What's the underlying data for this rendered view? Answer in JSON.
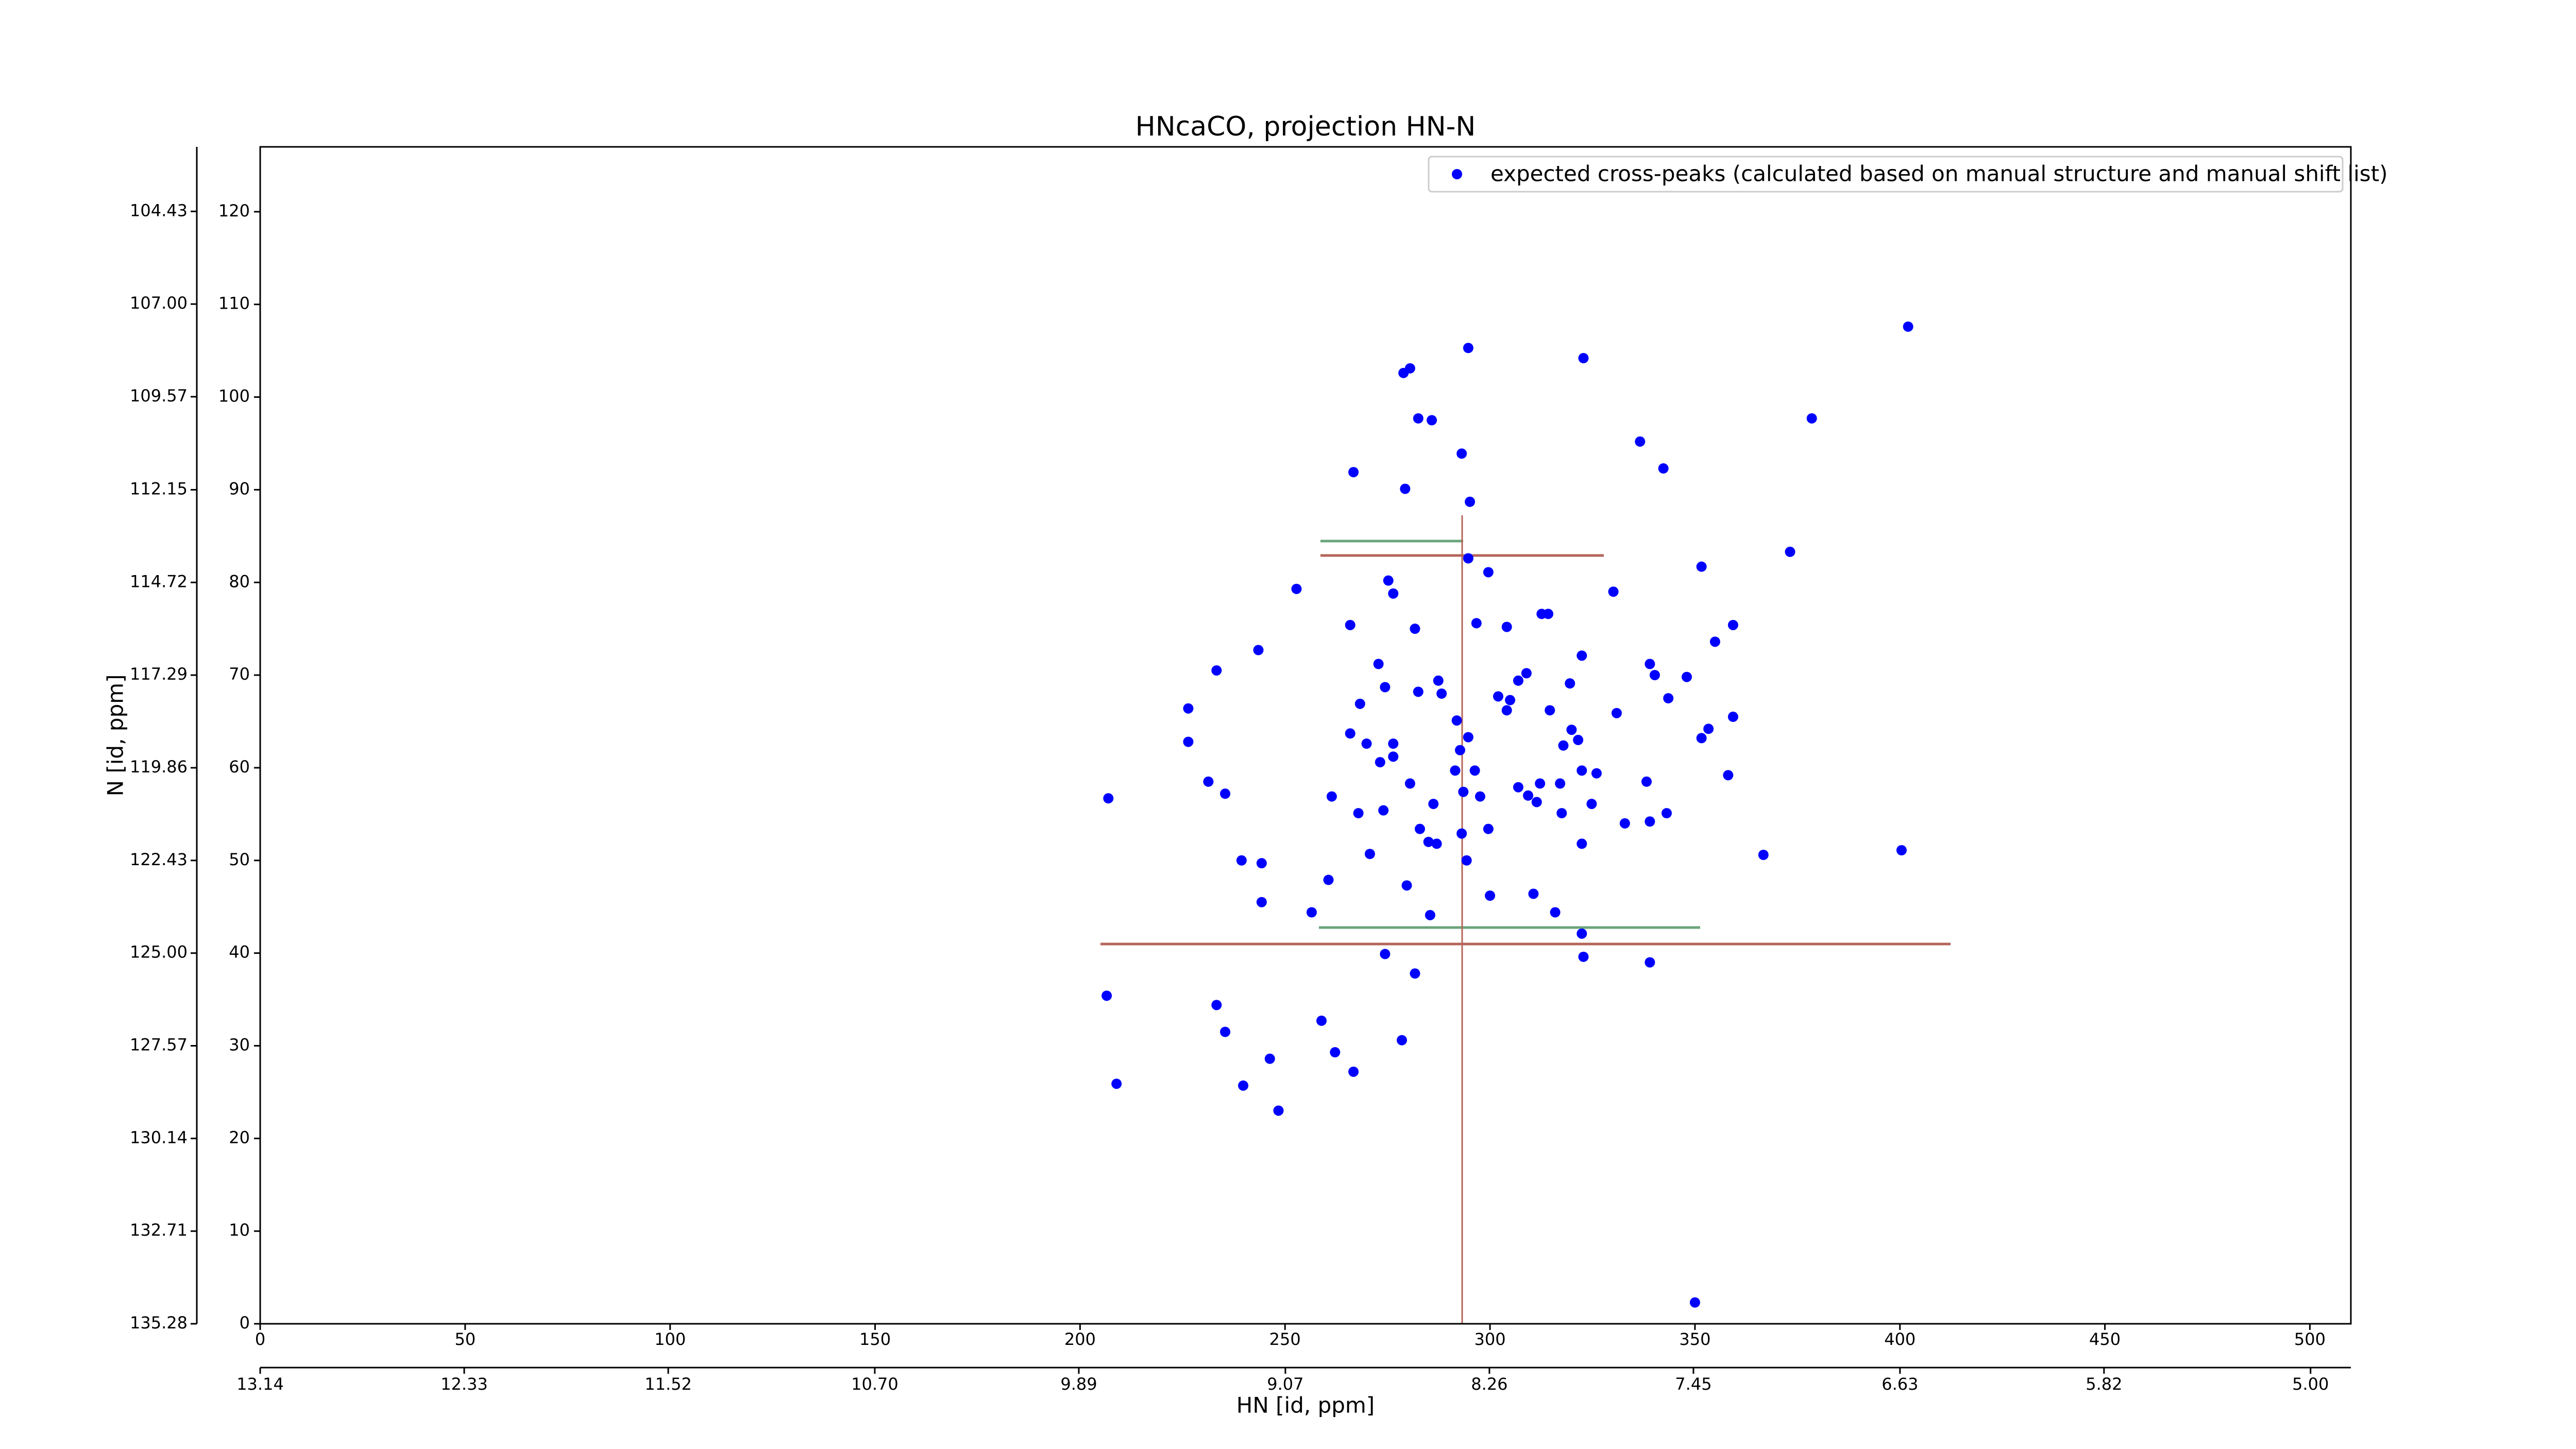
{
  "chart_data": {
    "type": "scatter",
    "title": "HNcaCO, projection HN-N",
    "xlabel": "HN [id, ppm]",
    "ylabel": "N [id, ppm]",
    "xlim": [
      0,
      510
    ],
    "xticks": [
      0,
      50,
      100,
      150,
      200,
      250,
      300,
      350,
      400,
      450,
      500
    ],
    "x2lim": [
      13.14,
      4.84
    ],
    "x2ticks": [
      13.14,
      12.33,
      11.52,
      {
        "value": 10.7,
        "label": "10.70"
      },
      9.89,
      9.07,
      8.26,
      7.45,
      6.63,
      5.82,
      {
        "value": 5,
        "label": "5.00"
      }
    ],
    "ylim": [
      0,
      127
    ],
    "yticks": [
      0,
      10,
      20,
      30,
      40,
      50,
      60,
      70,
      80,
      90,
      100,
      110,
      120
    ],
    "y2lim": [
      135.28,
      102.64
    ],
    "y2ticks": [
      135.28,
      132.71,
      130.14,
      127.57,
      {
        "value": 125,
        "label": "125.00"
      },
      122.43,
      119.86,
      117.29,
      114.72,
      112.15,
      109.57,
      {
        "value": 107,
        "label": "107.00"
      },
      104.43
    ],
    "legend": "upper right",
    "series": [
      {
        "name": "expected cross-peaks (calculated based on manual structure and manual shift list)",
        "color": "#0000ff",
        "x": [
          402.0,
          378.5,
          294.7,
          322.8,
          280.5,
          278.9,
          282.5,
          285.8,
          293.1,
          266.7,
          279.3,
          342.3,
          336.6,
          295.1,
          294.7,
          299.6,
          373.2,
          351.6,
          252.8,
          275.2,
          276.4,
          330.1,
          243.5,
          265.9,
          281.7,
          296.7,
          304.1,
          312.6,
          314.2,
          359.3,
          354.9,
          233.3,
          272.8,
          339.0,
          340.2,
          322.4,
          308.9,
          306.9,
          287.4,
          288.2,
          274.4,
          282.5,
          319.5,
          302.0,
          304.9,
          304.1,
          291.9,
          294.7,
          226.4,
          226.4,
          268.3,
          265.9,
          269.9,
          314.6,
          319.9,
          321.5,
          317.9,
          330.9,
          343.5,
          348.0,
          359.3,
          353.3,
          351.6,
          276.4,
          276.4,
          292.7,
          291.5,
          296.3,
          293.5,
          297.6,
          273.2,
          338.2,
          358.1,
          322.4,
          326.0,
          324.8,
          317.1,
          306.9,
          309.3,
          311.4,
          312.2,
          231.3,
          235.4,
          206.9,
          261.4,
          267.9,
          274.0,
          280.5,
          286.2,
          282.9,
          285.0,
          293.1,
          299.6,
          317.5,
          332.9,
          339.0,
          343.1,
          322.4,
          287.0,
          270.7,
          239.4,
          244.3,
          294.3,
          366.7,
          400.4,
          260.6,
          279.7,
          244.3,
          300.0,
          310.6,
          256.5,
          285.4,
          315.9,
          322.4,
          322.8,
          339.0,
          274.4,
          281.7,
          206.5,
          233.3,
          235.4,
          258.9,
          262.2,
          266.7,
          278.5,
          246.3,
          239.8,
          208.9,
          248.4,
          350.0
        ],
        "y": [
          107.6,
          97.7,
          105.3,
          104.2,
          103.1,
          102.6,
          97.7,
          97.5,
          93.9,
          91.9,
          90.1,
          92.3,
          95.2,
          88.7,
          82.6,
          81.1,
          83.3,
          81.7,
          79.3,
          80.2,
          78.8,
          79.0,
          72.7,
          75.4,
          75.0,
          75.6,
          75.2,
          76.6,
          76.6,
          75.4,
          73.6,
          70.5,
          71.2,
          71.2,
          70.0,
          72.1,
          70.2,
          69.4,
          69.4,
          68.0,
          68.7,
          68.2,
          69.1,
          67.7,
          67.3,
          66.2,
          65.1,
          63.3,
          66.4,
          62.8,
          66.9,
          63.7,
          62.6,
          66.2,
          64.1,
          63.0,
          62.4,
          65.9,
          67.5,
          69.8,
          65.5,
          64.2,
          63.2,
          62.6,
          61.2,
          61.9,
          59.7,
          59.7,
          57.4,
          56.9,
          60.6,
          58.5,
          59.2,
          59.7,
          59.4,
          56.1,
          58.3,
          57.9,
          57.0,
          56.3,
          58.3,
          58.5,
          57.2,
          56.7,
          56.9,
          55.1,
          55.4,
          58.3,
          56.1,
          53.4,
          52.0,
          52.9,
          53.4,
          55.1,
          54.0,
          54.2,
          55.1,
          51.8,
          51.8,
          50.7,
          50.0,
          49.7,
          50.0,
          50.6,
          51.1,
          47.9,
          47.3,
          45.5,
          46.2,
          46.4,
          44.4,
          44.1,
          44.4,
          42.1,
          39.6,
          39.0,
          39.9,
          37.8,
          35.4,
          34.4,
          31.5,
          32.7,
          29.3,
          27.2,
          30.6,
          28.6,
          25.7,
          25.9,
          23.0,
          2.3
        ]
      }
    ]
  }
}
